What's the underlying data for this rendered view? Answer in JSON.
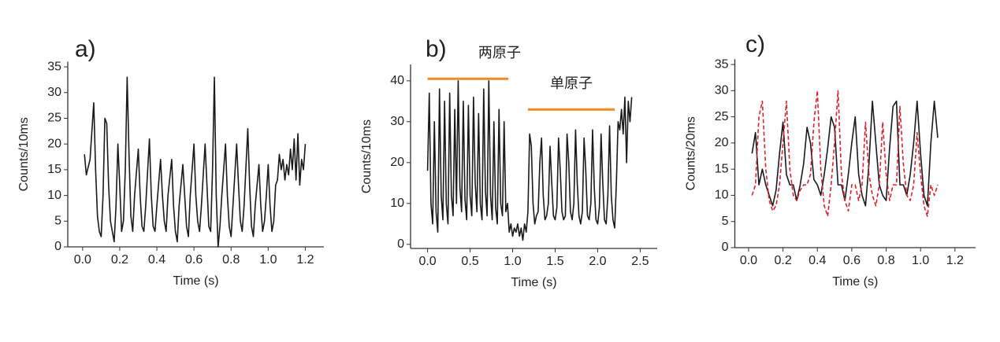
{
  "chart_data": [
    {
      "type": "line",
      "title": "a)",
      "xlabel": "Time (s)",
      "ylabel": "Counts/10ms",
      "color": "#1a1a1a",
      "xlim": [
        -0.08,
        1.3
      ],
      "ylim": [
        0,
        36
      ],
      "xticks": [
        {
          "value": 0,
          "label": "0.0"
        },
        0.2,
        0.4,
        0.6,
        0.8,
        {
          "value": 1,
          "label": "1.0"
        },
        1.2
      ],
      "yticks": [
        0,
        5,
        10,
        15,
        20,
        25,
        30,
        35
      ],
      "x": [
        0.01,
        0.02,
        0.04,
        0.06,
        0.07,
        0.08,
        0.09,
        0.1,
        0.11,
        0.12,
        0.13,
        0.14,
        0.15,
        0.16,
        0.17,
        0.18,
        0.19,
        0.2,
        0.21,
        0.22,
        0.23,
        0.24,
        0.25,
        0.26,
        0.27,
        0.28,
        0.3,
        0.31,
        0.32,
        0.33,
        0.34,
        0.36,
        0.37,
        0.38,
        0.39,
        0.4,
        0.42,
        0.43,
        0.44,
        0.45,
        0.46,
        0.48,
        0.49,
        0.5,
        0.51,
        0.52,
        0.54,
        0.55,
        0.56,
        0.57,
        0.58,
        0.6,
        0.61,
        0.62,
        0.63,
        0.64,
        0.66,
        0.67,
        0.68,
        0.69,
        0.7,
        0.71,
        0.72,
        0.73,
        0.74,
        0.75,
        0.77,
        0.78,
        0.79,
        0.8,
        0.81,
        0.83,
        0.84,
        0.85,
        0.86,
        0.87,
        0.89,
        0.9,
        0.91,
        0.92,
        0.93,
        0.95,
        0.96,
        0.97,
        0.98,
        0.99,
        1.0,
        1.01,
        1.02,
        1.03,
        1.04,
        1.05,
        1.06,
        1.07,
        1.08,
        1.09,
        1.1,
        1.11,
        1.12,
        1.13,
        1.14,
        1.15,
        1.16,
        1.17,
        1.18,
        1.19,
        1.2
      ],
      "values": [
        18,
        14,
        17,
        28,
        15,
        6,
        3,
        2,
        10,
        25,
        24,
        12,
        5,
        3,
        1,
        8,
        20,
        12,
        3,
        5,
        15,
        33,
        18,
        6,
        3,
        10,
        19,
        10,
        4,
        3,
        8,
        21,
        10,
        4,
        3,
        8,
        17,
        10,
        5,
        3,
        10,
        17,
        8,
        3,
        1,
        8,
        16,
        10,
        4,
        2,
        10,
        20,
        10,
        5,
        3,
        8,
        20,
        12,
        4,
        3,
        15,
        33,
        10,
        0,
        4,
        10,
        20,
        10,
        4,
        2,
        8,
        20,
        12,
        5,
        3,
        8,
        23,
        12,
        4,
        2,
        8,
        16,
        8,
        3,
        5,
        10,
        16,
        8,
        3,
        5,
        12,
        13,
        18,
        15,
        17,
        13,
        16,
        14,
        19,
        15,
        21,
        13,
        22,
        12,
        17,
        15,
        20
      ]
    },
    {
      "type": "line",
      "title": "b)",
      "xlabel": "Time (s)",
      "ylabel": "Counts/10ms",
      "color": "#1a1a1a",
      "xlim": [
        -0.2,
        2.7
      ],
      "ylim": [
        -1,
        44
      ],
      "xticks": [
        {
          "value": 0,
          "label": "0.0"
        },
        0.5,
        {
          "value": 1,
          "label": "1.0"
        },
        1.5,
        {
          "value": 2,
          "label": "2.0"
        },
        2.5
      ],
      "yticks": [
        0,
        10,
        20,
        30,
        40
      ],
      "x": [
        0,
        0.02,
        0.04,
        0.06,
        0.08,
        0.1,
        0.12,
        0.14,
        0.16,
        0.18,
        0.2,
        0.22,
        0.24,
        0.26,
        0.28,
        0.3,
        0.32,
        0.34,
        0.36,
        0.38,
        0.4,
        0.42,
        0.44,
        0.46,
        0.48,
        0.5,
        0.52,
        0.54,
        0.56,
        0.58,
        0.6,
        0.62,
        0.64,
        0.66,
        0.68,
        0.7,
        0.72,
        0.74,
        0.76,
        0.78,
        0.8,
        0.82,
        0.84,
        0.86,
        0.88,
        0.9,
        0.92,
        0.94,
        0.96,
        0.98,
        1.0,
        1.02,
        1.04,
        1.06,
        1.08,
        1.1,
        1.12,
        1.14,
        1.16,
        1.18,
        1.2,
        1.22,
        1.24,
        1.26,
        1.28,
        1.3,
        1.32,
        1.34,
        1.36,
        1.38,
        1.4,
        1.42,
        1.44,
        1.46,
        1.48,
        1.5,
        1.52,
        1.54,
        1.56,
        1.58,
        1.6,
        1.62,
        1.64,
        1.66,
        1.68,
        1.7,
        1.72,
        1.74,
        1.76,
        1.78,
        1.8,
        1.82,
        1.84,
        1.86,
        1.88,
        1.9,
        1.92,
        1.94,
        1.96,
        1.98,
        2.0,
        2.02,
        2.04,
        2.06,
        2.08,
        2.1,
        2.12,
        2.14,
        2.16,
        2.18,
        2.2,
        2.22,
        2.24,
        2.26,
        2.28,
        2.3,
        2.32,
        2.34,
        2.36,
        2.38,
        2.4
      ],
      "values": [
        18,
        37,
        10,
        5,
        30,
        8,
        3,
        38,
        12,
        6,
        35,
        10,
        5,
        37,
        12,
        7,
        33,
        10,
        40,
        14,
        8,
        35,
        11,
        6,
        34,
        12,
        7,
        36,
        15,
        8,
        32,
        10,
        6,
        38,
        13,
        7,
        40,
        12,
        6,
        30,
        9,
        5,
        33,
        10,
        7,
        30,
        8,
        10,
        3,
        5,
        2,
        4,
        3,
        5,
        2,
        4,
        1,
        5,
        3,
        8,
        27,
        24,
        10,
        5,
        7,
        8,
        20,
        26,
        12,
        6,
        7,
        10,
        24,
        15,
        7,
        6,
        9,
        26,
        18,
        8,
        6,
        7,
        27,
        20,
        8,
        6,
        10,
        28,
        15,
        7,
        5,
        8,
        26,
        18,
        7,
        6,
        10,
        28,
        14,
        6,
        5,
        9,
        27,
        15,
        6,
        5,
        12,
        29,
        12,
        6,
        4,
        15,
        30,
        28,
        33,
        27,
        36,
        20,
        35,
        30,
        36
      ],
      "annotations": [
        {
          "text": "两原子",
          "y": 40.5,
          "x": [
            0,
            0.95
          ],
          "color": "#f08a24"
        },
        {
          "text": "单原子",
          "y": 33,
          "x": [
            1.18,
            2.2
          ],
          "color": "#f08a24"
        }
      ]
    },
    {
      "type": "line",
      "title": "c)",
      "xlabel": "Time (s)",
      "ylabel": "Counts/20ms",
      "xlim": [
        -0.08,
        1.32
      ],
      "ylim": [
        0,
        36
      ],
      "xticks": [
        {
          "value": 0,
          "label": "0.0"
        },
        0.2,
        0.4,
        0.6,
        0.8,
        {
          "value": 1,
          "label": "1.0"
        },
        1.2
      ],
      "yticks": [
        0,
        5,
        10,
        15,
        20,
        25,
        30,
        35
      ],
      "x": [
        0.02,
        0.04,
        0.06,
        0.08,
        0.1,
        0.12,
        0.14,
        0.16,
        0.18,
        0.2,
        0.22,
        0.24,
        0.26,
        0.28,
        0.3,
        0.32,
        0.34,
        0.36,
        0.38,
        0.4,
        0.42,
        0.44,
        0.46,
        0.48,
        0.5,
        0.52,
        0.54,
        0.56,
        0.58,
        0.6,
        0.62,
        0.64,
        0.66,
        0.68,
        0.7,
        0.72,
        0.74,
        0.76,
        0.78,
        0.8,
        0.82,
        0.84,
        0.86,
        0.88,
        0.9,
        0.92,
        0.94,
        0.96,
        0.98,
        1.0,
        1.02,
        1.04,
        1.06,
        1.08,
        1.1
      ],
      "series": [
        {
          "color": "#1a1a1a",
          "line_style": "solid",
          "values": [
            18,
            22,
            12,
            15,
            12,
            10,
            8,
            11,
            18,
            24,
            14,
            12,
            12,
            9,
            12,
            16,
            23,
            20,
            13,
            12,
            10,
            14,
            19,
            25,
            23,
            12,
            12,
            9,
            14,
            20,
            25,
            14,
            10,
            8,
            16,
            28,
            20,
            12,
            10,
            9,
            19,
            27,
            28,
            12,
            12,
            10,
            14,
            20,
            28,
            18,
            10,
            8,
            20,
            28,
            21
          ]
        },
        {
          "color": "#e0202a",
          "line_style": "dashed",
          "values": [
            10,
            12,
            25,
            28,
            15,
            9,
            7,
            8,
            12,
            20,
            28,
            15,
            10,
            9,
            11,
            12,
            12,
            14,
            24,
            30,
            15,
            8,
            6,
            12,
            20,
            30,
            14,
            9,
            7,
            12,
            12,
            9,
            12,
            24,
            14,
            10,
            8,
            12,
            24,
            14,
            9,
            12,
            12,
            27,
            16,
            10,
            9,
            12,
            22,
            14,
            8,
            6,
            12,
            10,
            12
          ]
        }
      ]
    }
  ]
}
